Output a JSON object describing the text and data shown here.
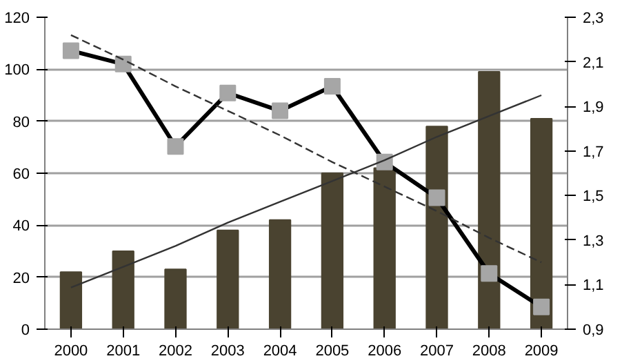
{
  "chart_data": {
    "type": "bar",
    "categories": [
      "2000",
      "2001",
      "2002",
      "2003",
      "2004",
      "2005",
      "2006",
      "2007",
      "2008",
      "2009"
    ],
    "series": [
      {
        "color": "#4a4330",
        "values": [
          22,
          30,
          23,
          38,
          42,
          60,
          62,
          78,
          99,
          81
        ]
      },
      {
        "type": "line",
        "axis": "y2",
        "color": "#000000",
        "colors": [
          "#a6a6a6",
          "#a6a6a6",
          "#a6a6a6",
          "#a6a6a6",
          "#a6a6a6",
          "#a6a6a6",
          "#a6a6a6",
          "#a6a6a6",
          "#a6a6a6",
          "#a6a6a6"
        ],
        "marker": "square",
        "line_style": "solid",
        "values": [
          2.15,
          2.09,
          1.72,
          1.96,
          1.88,
          1.99,
          1.65,
          1.49,
          1.15,
          1.0
        ]
      },
      {
        "type": "line",
        "color": "#333333",
        "marker": "none",
        "line_style": "solid",
        "values": [
          16,
          24,
          32,
          41,
          49,
          57,
          65,
          74,
          82,
          90
        ]
      },
      {
        "type": "line",
        "axis": "y2",
        "color": "#333333",
        "marker": "none",
        "line_style": "dashed",
        "values": [
          2.22,
          2.11,
          1.99,
          1.88,
          1.77,
          1.65,
          1.54,
          1.43,
          1.31,
          1.2
        ]
      }
    ],
    "ylim": [
      0,
      120
    ],
    "yticks": [
      0,
      20,
      40,
      60,
      80,
      100,
      120
    ],
    "y2lim": [
      0.9,
      2.3
    ],
    "y2ticks": [
      {
        "value": 0.9,
        "label": "0,9"
      },
      {
        "value": 1.1,
        "label": "1,1"
      },
      {
        "value": 1.3,
        "label": "1,3"
      },
      {
        "value": 1.5,
        "label": "1,5"
      },
      {
        "value": 1.7,
        "label": "1,7"
      },
      {
        "value": 1.9,
        "label": "1,9"
      },
      {
        "value": 2.1,
        "label": "2,1"
      },
      {
        "value": 2.3,
        "label": "2,3"
      }
    ],
    "grid": "y"
  }
}
